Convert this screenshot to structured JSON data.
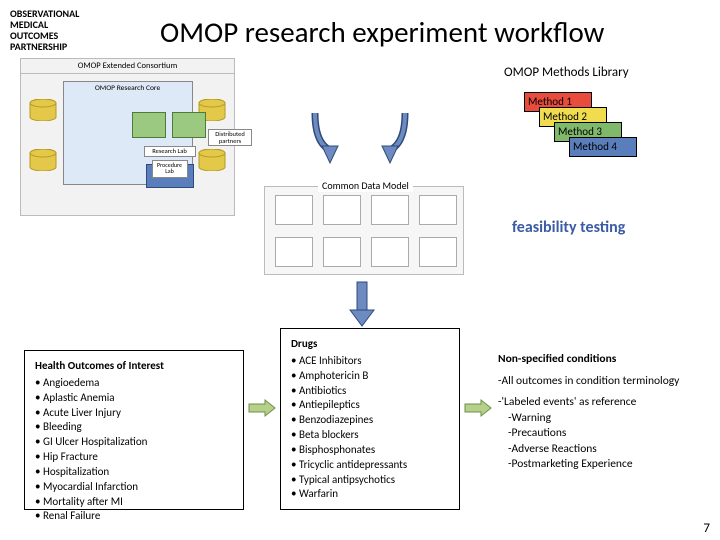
{
  "organization": {
    "l1": "OBSERVATIONAL",
    "l2": "MEDICAL",
    "l3": "OUTCOMES",
    "l4": "PARTNERSHIP"
  },
  "title": "OMOP research experiment workflow",
  "consortium": {
    "header": "OMOP Extended Consortium",
    "core": "OMOP Research Core",
    "research_lab": "Research Lab",
    "procedure": "Procedure Lab",
    "distributed": "Distributed partners"
  },
  "methods_library_label": "OMOP Methods Library",
  "methods": [
    {
      "label": "Method 1",
      "bg": "#e84c3d"
    },
    {
      "label": "Method 2",
      "bg": "#f0dc4e"
    },
    {
      "label": "Method 3",
      "bg": "#7fb96a"
    },
    {
      "label": "Method 4",
      "bg": "#5a7ebc"
    }
  ],
  "cdm_label": "Common Data Model",
  "feasibility": "feasibility testing",
  "health": {
    "title": "Health Outcomes of Interest",
    "items": [
      "Angioedema",
      "Aplastic Anemia",
      "Acute Liver Injury",
      "Bleeding",
      "GI Ulcer Hospitalization",
      "Hip Fracture",
      "Hospitalization",
      "Myocardial Infarction",
      "Mortality after MI",
      "Renal Failure"
    ]
  },
  "drugs": {
    "title": "Drugs",
    "items": [
      "ACE Inhibitors",
      "Amphotericin B",
      "Antibiotics",
      "Antiepileptics",
      "Benzodiazepines",
      "Beta blockers",
      "Bisphosphonates",
      "Tricyclic antidepressants",
      "Typical antipsychotics",
      "Warfarin"
    ]
  },
  "conditions": {
    "title": "Non-specified conditions",
    "line1": "-All outcomes in condition terminology",
    "line2": "-'Labeled events' as reference",
    "subs": [
      "-Warning",
      "-Precautions",
      "-Adverse Reactions",
      "-Postmarketing Experience"
    ]
  },
  "colors": {
    "cylinder": "#e4c84a",
    "cylinder_stroke": "#b39a1e",
    "arrow_fill": "#6e8bc1",
    "arrow_stroke": "#2f4a7a",
    "link_arrow": "#b6d089",
    "link_arrow_stroke": "#6e8f4a"
  },
  "page_number": "7"
}
